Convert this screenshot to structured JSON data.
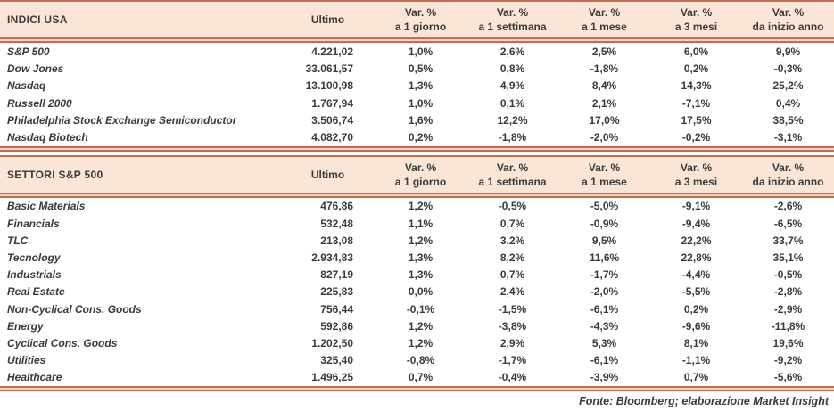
{
  "chart_data": [
    {
      "type": "table",
      "title": "INDICI USA",
      "ultimo_label": "Ultimo",
      "columns": [
        {
          "line1": "Var. %",
          "line2": "a 1 giorno"
        },
        {
          "line1": "Var. %",
          "line2": "a 1 settimana"
        },
        {
          "line1": "Var. %",
          "line2": "a 1 mese"
        },
        {
          "line1": "Var. %",
          "line2": "a 3 mesi"
        },
        {
          "line1": "Var. %",
          "line2": "da inizio anno"
        }
      ],
      "rows": [
        {
          "label": "S&P 500",
          "ultimo": "4.221,02",
          "vars": [
            "1,0%",
            "2,6%",
            "2,5%",
            "6,0%",
            "9,9%"
          ]
        },
        {
          "label": "Dow Jones",
          "ultimo": "33.061,57",
          "vars": [
            "0,5%",
            "0,8%",
            "-1,8%",
            "0,2%",
            "-0,3%"
          ]
        },
        {
          "label": "Nasdaq",
          "ultimo": "13.100,98",
          "vars": [
            "1,3%",
            "4,9%",
            "8,4%",
            "14,3%",
            "25,2%"
          ]
        },
        {
          "label": "Russell 2000",
          "ultimo": "1.767,94",
          "vars": [
            "1,0%",
            "0,1%",
            "2,1%",
            "-7,1%",
            "0,4%"
          ]
        },
        {
          "label": "Philadelphia Stock Exchange Semiconductor",
          "ultimo": "3.506,74",
          "vars": [
            "1,6%",
            "12,2%",
            "17,0%",
            "17,5%",
            "38,5%"
          ]
        },
        {
          "label": "Nasdaq Biotech",
          "ultimo": "4.082,70",
          "vars": [
            "0,2%",
            "-1,8%",
            "-2,0%",
            "-0,2%",
            "-3,1%"
          ]
        }
      ]
    },
    {
      "type": "table",
      "title": "SETTORI S&P 500",
      "ultimo_label": "Ultimo",
      "columns": [
        {
          "line1": "Var. %",
          "line2": "a 1 giorno"
        },
        {
          "line1": "Var. %",
          "line2": "a 1 settimana"
        },
        {
          "line1": "Var. %",
          "line2": "a 1 mese"
        },
        {
          "line1": "Var. %",
          "line2": "a 3 mesi"
        },
        {
          "line1": "Var. %",
          "line2": "da inizio anno"
        }
      ],
      "rows": [
        {
          "label": "Basic Materials",
          "ultimo": "476,86",
          "vars": [
            "1,2%",
            "-0,5%",
            "-5,0%",
            "-9,1%",
            "-2,6%"
          ]
        },
        {
          "label": "Financials",
          "ultimo": "532,48",
          "vars": [
            "1,1%",
            "0,7%",
            "-0,9%",
            "-9,4%",
            "-6,5%"
          ]
        },
        {
          "label": "TLC",
          "ultimo": "213,08",
          "vars": [
            "1,2%",
            "3,2%",
            "9,5%",
            "22,2%",
            "33,7%"
          ]
        },
        {
          "label": "Tecnology",
          "ultimo": "2.934,83",
          "vars": [
            "1,3%",
            "8,2%",
            "11,6%",
            "22,8%",
            "35,1%"
          ]
        },
        {
          "label": "Industrials",
          "ultimo": "827,19",
          "vars": [
            "1,3%",
            "0,7%",
            "-1,7%",
            "-4,4%",
            "-0,5%"
          ]
        },
        {
          "label": "Real Estate",
          "ultimo": "225,83",
          "vars": [
            "0,0%",
            "2,4%",
            "-2,0%",
            "-5,5%",
            "-2,8%"
          ]
        },
        {
          "label": "Non-Cyclical Cons. Goods",
          "ultimo": "756,44",
          "vars": [
            "-0,1%",
            "-1,5%",
            "-6,1%",
            "0,2%",
            "-2,9%"
          ]
        },
        {
          "label": "Energy",
          "ultimo": "592,86",
          "vars": [
            "1,2%",
            "-3,8%",
            "-4,3%",
            "-9,6%",
            "-11,8%"
          ]
        },
        {
          "label": "Cyclical Cons. Goods",
          "ultimo": "1.202,50",
          "vars": [
            "1,2%",
            "2,9%",
            "5,3%",
            "8,1%",
            "19,6%"
          ]
        },
        {
          "label": "Utilities",
          "ultimo": "325,40",
          "vars": [
            "-0,8%",
            "-1,7%",
            "-6,1%",
            "-1,1%",
            "-9,2%"
          ]
        },
        {
          "label": "Healthcare",
          "ultimo": "1.496,25",
          "vars": [
            "0,7%",
            "-0,4%",
            "-3,9%",
            "0,7%",
            "-5,6%"
          ]
        }
      ]
    }
  ],
  "footer": {
    "source": "Fonte: Bloomberg; elaborazione Market Insight"
  },
  "colors": {
    "header_bg": "#fbe5d6",
    "rule": "#c46b54",
    "text": "#3a3a3a"
  }
}
